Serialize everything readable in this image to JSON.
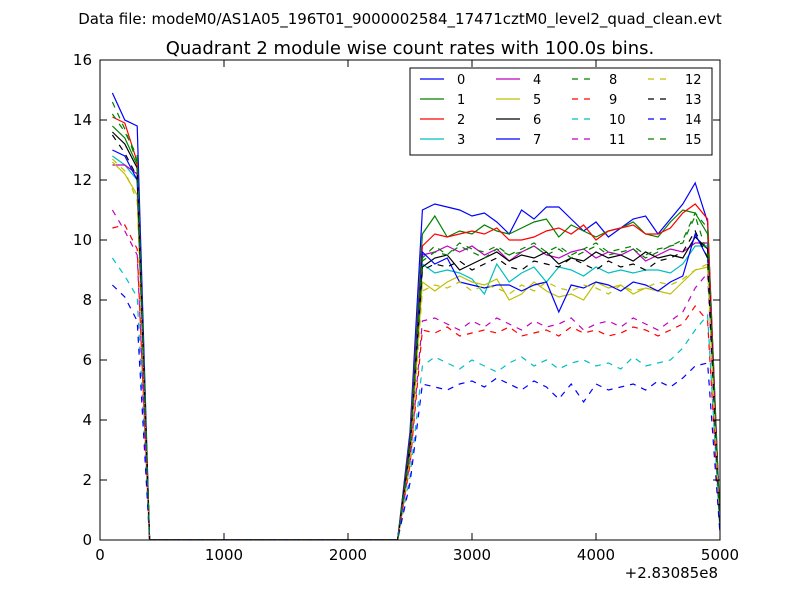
{
  "header": {
    "datafile": "Data file: modeM0/AS1A05_196T01_9000002584_17471cztM0_level2_quad_clean.evt"
  },
  "chart_data": {
    "type": "line",
    "title": "Quadrant 2 module wise count rates with 100.0s bins.",
    "xlabel": "",
    "ylabel": "",
    "x_offset_label": "+2.83085e8",
    "xlim": [
      0,
      5000
    ],
    "ylim": [
      0,
      16
    ],
    "xticks": [
      0,
      1000,
      2000,
      3000,
      4000,
      5000
    ],
    "yticks": [
      0,
      2,
      4,
      6,
      8,
      10,
      12,
      14,
      16
    ],
    "grid": false,
    "legend_position": "top-right",
    "x": [
      100,
      200,
      300,
      400,
      500,
      600,
      700,
      800,
      900,
      1000,
      1100,
      1200,
      1300,
      1400,
      1500,
      1600,
      1700,
      1800,
      1900,
      2000,
      2100,
      2200,
      2300,
      2400,
      2500,
      2600,
      2700,
      2800,
      2900,
      3000,
      3100,
      3200,
      3300,
      3400,
      3500,
      3600,
      3700,
      3800,
      3900,
      4000,
      4100,
      4200,
      4300,
      4400,
      4500,
      4600,
      4700,
      4800,
      4900,
      5000
    ],
    "series": [
      {
        "name": "0",
        "color": "#0000ff",
        "dash": "solid",
        "values": [
          14.9,
          14.0,
          13.8,
          0,
          0,
          0,
          0,
          0,
          0,
          0,
          0,
          0,
          0,
          0,
          0,
          0,
          0,
          0,
          0,
          0,
          0,
          0,
          0,
          0,
          3.6,
          11.0,
          11.2,
          11.1,
          11.0,
          10.8,
          10.9,
          10.6,
          10.2,
          11.0,
          10.7,
          11.1,
          11.1,
          10.7,
          10.3,
          10.6,
          10.1,
          10.4,
          10.7,
          10.8,
          10.2,
          10.7,
          11.2,
          11.9,
          10.6,
          0.6
        ]
      },
      {
        "name": "1",
        "color": "#008000",
        "dash": "solid",
        "values": [
          13.8,
          13.4,
          12.5,
          0,
          0,
          0,
          0,
          0,
          0,
          0,
          0,
          0,
          0,
          0,
          0,
          0,
          0,
          0,
          0,
          0,
          0,
          0,
          0,
          0,
          3.4,
          10.2,
          10.8,
          10.1,
          10.3,
          10.2,
          10.5,
          10.3,
          10.2,
          10.4,
          10.6,
          10.7,
          10.1,
          10.5,
          10.3,
          10.1,
          10.3,
          10.4,
          10.6,
          10.2,
          10.1,
          10.6,
          11.0,
          10.9,
          10.2,
          0.5
        ]
      },
      {
        "name": "2",
        "color": "#ff0000",
        "dash": "solid",
        "values": [
          14.1,
          13.9,
          12.6,
          0,
          0,
          0,
          0,
          0,
          0,
          0,
          0,
          0,
          0,
          0,
          0,
          0,
          0,
          0,
          0,
          0,
          0,
          0,
          0,
          0,
          3.3,
          9.8,
          10.2,
          10.1,
          10.2,
          10.3,
          10.2,
          10.4,
          10.0,
          10.0,
          10.1,
          10.3,
          10.4,
          10.2,
          10.5,
          10.0,
          10.3,
          10.4,
          10.5,
          10.2,
          10.2,
          10.4,
          10.9,
          11.2,
          10.7,
          0.5
        ]
      },
      {
        "name": "3",
        "color": "#00bfbf",
        "dash": "solid",
        "values": [
          12.8,
          12.5,
          12.0,
          0,
          0,
          0,
          0,
          0,
          0,
          0,
          0,
          0,
          0,
          0,
          0,
          0,
          0,
          0,
          0,
          0,
          0,
          0,
          0,
          0,
          3.0,
          9.2,
          8.9,
          9.0,
          8.9,
          8.7,
          8.2,
          9.2,
          8.6,
          8.9,
          9.1,
          8.6,
          9.1,
          9.0,
          8.8,
          9.1,
          8.9,
          9.0,
          8.9,
          9.0,
          9.0,
          8.9,
          9.2,
          9.8,
          9.8,
          0.4
        ]
      },
      {
        "name": "4",
        "color": "#bf00bf",
        "dash": "solid",
        "values": [
          12.5,
          12.5,
          12.2,
          0,
          0,
          0,
          0,
          0,
          0,
          0,
          0,
          0,
          0,
          0,
          0,
          0,
          0,
          0,
          0,
          0,
          0,
          0,
          0,
          0,
          3.1,
          9.5,
          9.6,
          9.8,
          9.6,
          9.8,
          9.5,
          9.7,
          9.3,
          9.6,
          9.8,
          9.5,
          9.4,
          9.6,
          9.7,
          9.4,
          9.6,
          9.5,
          9.7,
          9.3,
          9.5,
          9.7,
          9.6,
          9.9,
          9.9,
          0.4
        ]
      },
      {
        "name": "5",
        "color": "#bfbf00",
        "dash": "solid",
        "values": [
          12.6,
          12.2,
          11.5,
          0,
          0,
          0,
          0,
          0,
          0,
          0,
          0,
          0,
          0,
          0,
          0,
          0,
          0,
          0,
          0,
          0,
          0,
          0,
          0,
          0,
          2.8,
          8.6,
          8.3,
          8.6,
          8.8,
          8.6,
          8.5,
          8.7,
          8.0,
          8.2,
          8.6,
          8.3,
          8.1,
          8.2,
          8.0,
          8.6,
          8.4,
          8.5,
          8.2,
          8.4,
          8.3,
          8.2,
          8.6,
          9.0,
          9.1,
          0.3
        ]
      },
      {
        "name": "6",
        "color": "#000000",
        "dash": "solid",
        "values": [
          13.6,
          13.2,
          12.4,
          0,
          0,
          0,
          0,
          0,
          0,
          0,
          0,
          0,
          0,
          0,
          0,
          0,
          0,
          0,
          0,
          0,
          0,
          0,
          0,
          0,
          3.2,
          9.1,
          9.4,
          9.5,
          9.0,
          9.2,
          9.4,
          9.6,
          9.3,
          9.5,
          9.4,
          9.6,
          9.2,
          9.4,
          9.3,
          9.6,
          9.4,
          9.5,
          9.3,
          9.6,
          9.4,
          9.5,
          9.4,
          10.1,
          9.7,
          0.4
        ]
      },
      {
        "name": "7",
        "color": "#0000ff",
        "dash": "solid",
        "values": [
          13.0,
          12.8,
          12.0,
          0,
          0,
          0,
          0,
          0,
          0,
          0,
          0,
          0,
          0,
          0,
          0,
          0,
          0,
          0,
          0,
          0,
          0,
          0,
          0,
          0,
          3.1,
          9.6,
          9.2,
          9.4,
          8.6,
          8.5,
          8.4,
          8.5,
          8.5,
          8.3,
          8.5,
          8.6,
          7.6,
          8.5,
          8.4,
          8.6,
          8.5,
          8.3,
          8.6,
          8.5,
          8.3,
          8.6,
          8.8,
          10.2,
          9.4,
          0.4
        ]
      },
      {
        "name": "8",
        "color": "#008000",
        "dash": "dashed",
        "values": [
          14.6,
          13.7,
          12.6,
          0,
          0,
          0,
          0,
          0,
          0,
          0,
          0,
          0,
          0,
          0,
          0,
          0,
          0,
          0,
          0,
          0,
          0,
          0,
          0,
          0,
          3.0,
          9.4,
          9.8,
          9.5,
          9.9,
          9.7,
          9.6,
          9.8,
          9.5,
          9.7,
          9.9,
          9.6,
          9.8,
          9.5,
          9.7,
          9.9,
          9.6,
          9.7,
          9.8,
          9.5,
          9.7,
          9.8,
          9.9,
          10.8,
          9.5,
          0.5
        ]
      },
      {
        "name": "9",
        "color": "#ff0000",
        "dash": "dashed",
        "values": [
          10.4,
          10.5,
          9.7,
          0,
          0,
          0,
          0,
          0,
          0,
          0,
          0,
          0,
          0,
          0,
          0,
          0,
          0,
          0,
          0,
          0,
          0,
          0,
          0,
          0,
          2.5,
          7.0,
          6.9,
          7.1,
          6.8,
          6.9,
          7.0,
          6.9,
          7.1,
          6.8,
          6.9,
          7.0,
          6.8,
          7.1,
          6.9,
          7.0,
          6.8,
          6.9,
          7.1,
          7.0,
          6.8,
          7.0,
          7.2,
          7.8,
          7.3,
          0.3
        ]
      },
      {
        "name": "10",
        "color": "#00bfbf",
        "dash": "dashed",
        "values": [
          9.4,
          8.8,
          8.1,
          0,
          0,
          0,
          0,
          0,
          0,
          0,
          0,
          0,
          0,
          0,
          0,
          0,
          0,
          0,
          0,
          0,
          0,
          0,
          0,
          0,
          2.1,
          5.8,
          6.1,
          5.9,
          5.7,
          6.0,
          5.8,
          5.6,
          5.9,
          6.1,
          5.8,
          6.0,
          5.7,
          5.9,
          6.0,
          5.8,
          5.9,
          5.7,
          6.1,
          5.8,
          5.9,
          6.0,
          6.4,
          7.0,
          7.5,
          0.3
        ]
      },
      {
        "name": "11",
        "color": "#bf00bf",
        "dash": "dashed",
        "values": [
          11.0,
          10.3,
          9.5,
          0,
          0,
          0,
          0,
          0,
          0,
          0,
          0,
          0,
          0,
          0,
          0,
          0,
          0,
          0,
          0,
          0,
          0,
          0,
          0,
          0,
          2.6,
          7.3,
          7.4,
          7.2,
          7.0,
          7.3,
          7.1,
          7.4,
          7.2,
          7.0,
          7.3,
          7.1,
          7.2,
          7.4,
          7.0,
          7.2,
          7.3,
          7.1,
          7.4,
          7.2,
          7.0,
          7.3,
          7.6,
          8.4,
          8.9,
          0.3
        ]
      },
      {
        "name": "12",
        "color": "#bfbf00",
        "dash": "dashed",
        "values": [
          12.7,
          12.3,
          11.3,
          0,
          0,
          0,
          0,
          0,
          0,
          0,
          0,
          0,
          0,
          0,
          0,
          0,
          0,
          0,
          0,
          0,
          0,
          0,
          0,
          0,
          2.7,
          8.3,
          8.5,
          8.4,
          8.6,
          8.3,
          8.5,
          8.4,
          8.2,
          8.5,
          8.3,
          8.6,
          8.4,
          8.3,
          8.5,
          8.4,
          8.2,
          8.5,
          8.3,
          8.4,
          8.6,
          8.5,
          8.7,
          9.0,
          9.2,
          0.3
        ]
      },
      {
        "name": "13",
        "color": "#000000",
        "dash": "dashed",
        "values": [
          13.5,
          12.9,
          12.1,
          0,
          0,
          0,
          0,
          0,
          0,
          0,
          0,
          0,
          0,
          0,
          0,
          0,
          0,
          0,
          0,
          0,
          0,
          0,
          0,
          0,
          3.0,
          9.0,
          9.2,
          9.1,
          9.3,
          9.0,
          9.2,
          9.4,
          9.1,
          9.0,
          9.3,
          9.2,
          9.1,
          9.4,
          9.2,
          9.0,
          9.3,
          9.1,
          9.2,
          9.0,
          9.3,
          9.4,
          9.6,
          10.3,
          9.4,
          0.4
        ]
      },
      {
        "name": "14",
        "color": "#0000ff",
        "dash": "dashed",
        "values": [
          8.5,
          8.1,
          7.3,
          0,
          0,
          0,
          0,
          0,
          0,
          0,
          0,
          0,
          0,
          0,
          0,
          0,
          0,
          0,
          0,
          0,
          0,
          0,
          0,
          0,
          1.9,
          5.2,
          5.1,
          5.0,
          5.2,
          5.3,
          5.1,
          5.4,
          5.2,
          5.0,
          5.3,
          5.1,
          4.7,
          5.2,
          4.6,
          5.2,
          5.0,
          5.1,
          5.2,
          5.0,
          5.3,
          5.1,
          5.4,
          5.8,
          5.9,
          0.2
        ]
      },
      {
        "name": "15",
        "color": "#008000",
        "dash": "dashed",
        "values": [
          14.2,
          13.6,
          12.8,
          0,
          0,
          0,
          0,
          0,
          0,
          0,
          0,
          0,
          0,
          0,
          0,
          0,
          0,
          0,
          0,
          0,
          0,
          0,
          0,
          0,
          3.1,
          9.3,
          9.6,
          9.5,
          9.8,
          9.6,
          9.4,
          9.7,
          9.5,
          9.6,
          9.8,
          9.5,
          9.7,
          9.4,
          9.6,
          9.8,
          9.5,
          9.6,
          9.7,
          9.4,
          9.6,
          9.8,
          10.0,
          10.9,
          10.4,
          0.5
        ]
      }
    ]
  }
}
